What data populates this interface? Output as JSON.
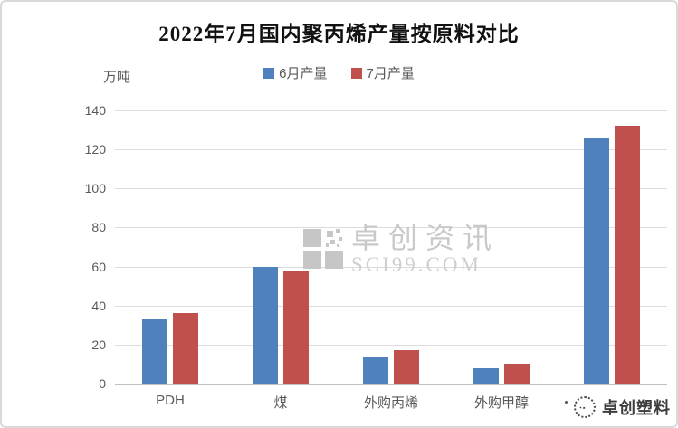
{
  "chart_data": {
    "type": "bar",
    "title": "2022年7月国内聚丙烯产量按原料对比",
    "unit_label": "万吨",
    "categories": [
      "PDH",
      "煤",
      "外购丙烯",
      "外购甲醇",
      ""
    ],
    "series": [
      {
        "name": "6月产量",
        "color": "#4F81BD",
        "values": [
          33,
          60,
          14,
          8,
          126
        ]
      },
      {
        "name": "7月产量",
        "color": "#C0504D",
        "values": [
          36,
          58,
          17,
          10,
          132
        ]
      }
    ],
    "ylim": [
      0,
      140
    ],
    "ytick_step": 20,
    "grid": true,
    "legend_position": "top-center",
    "colors": {
      "june_blue": "#4F81BD",
      "july_red": "#C0504D",
      "gridline": "#DCDCDC",
      "axis_text": "#595959",
      "title_text": "#111111"
    }
  },
  "watermarks": {
    "center": {
      "logo": "squares-logo",
      "line1": "卓创资讯",
      "line2": "SCI99.COM"
    },
    "bottom_right": {
      "icon": "circle-face-logo",
      "text": "卓创塑料"
    }
  }
}
